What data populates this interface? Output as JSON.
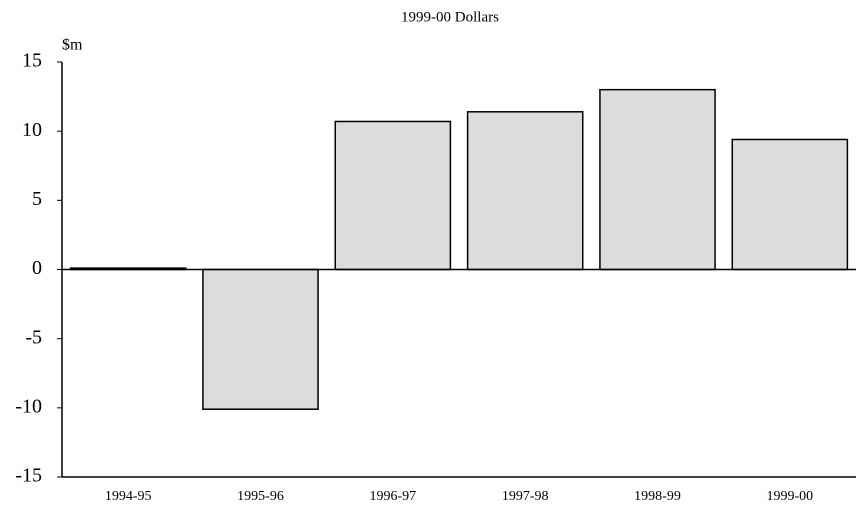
{
  "chart_data": {
    "type": "bar",
    "title": "1999-00 Dollars",
    "y_label": "$m",
    "categories": [
      "1994-95",
      "1995-96",
      "1996-97",
      "1997-98",
      "1998-99",
      "1999-00"
    ],
    "values": [
      0.1,
      -10.1,
      10.7,
      11.4,
      13.0,
      9.4
    ],
    "color": "#dcdcdc",
    "ylim": [
      -15,
      15
    ],
    "yticks": [
      -15,
      -10,
      -5,
      0,
      5,
      10,
      15
    ],
    "grid": false
  }
}
